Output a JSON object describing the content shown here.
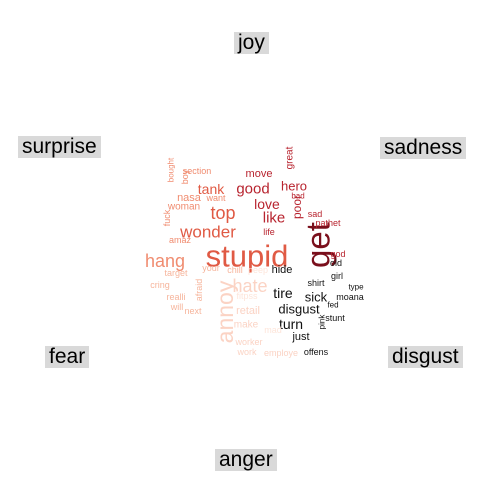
{
  "chart_data": {
    "type": "wordcloud",
    "categories": [
      "joy",
      "surprise",
      "sadness",
      "fear",
      "disgust",
      "anger"
    ],
    "colors": {
      "dark_red": "#7a0f1c",
      "red": "#b8242f",
      "orange_red": "#e05a44",
      "salmon": "#f08c70",
      "peach": "#f6b59c",
      "light_peach": "#fbd3c4",
      "pale": "#fde5da",
      "black": "#111111"
    },
    "words": [
      {
        "text": "stupid",
        "color": "orange_red"
      },
      {
        "text": "get",
        "color": "dark_red"
      },
      {
        "text": "annoy",
        "color": "light_peach"
      },
      {
        "text": "hang",
        "color": "salmon"
      },
      {
        "text": "wonder",
        "color": "orange_red"
      },
      {
        "text": "top",
        "color": "orange_red"
      },
      {
        "text": "hate",
        "color": "light_peach"
      },
      {
        "text": "like",
        "color": "red"
      },
      {
        "text": "love",
        "color": "red"
      },
      {
        "text": "good",
        "color": "red"
      },
      {
        "text": "tank",
        "color": "orange_red"
      },
      {
        "text": "hero",
        "color": "red"
      },
      {
        "text": "tire",
        "color": "black"
      },
      {
        "text": "turn",
        "color": "black"
      },
      {
        "text": "sick",
        "color": "black"
      },
      {
        "text": "disgust",
        "color": "black"
      },
      {
        "text": "poor",
        "color": "red"
      },
      {
        "text": "move",
        "color": "red"
      },
      {
        "text": "nasa",
        "color": "salmon"
      },
      {
        "text": "woman",
        "color": "salmon"
      },
      {
        "text": "section",
        "color": "salmon"
      },
      {
        "text": "great",
        "color": "red"
      },
      {
        "text": "bought",
        "color": "salmon"
      },
      {
        "text": "boy",
        "color": "salmon"
      },
      {
        "text": "want",
        "color": "salmon"
      },
      {
        "text": "fuck",
        "color": "salmon"
      },
      {
        "text": "amaz",
        "color": "salmon"
      },
      {
        "text": "bad",
        "color": "red"
      },
      {
        "text": "sad",
        "color": "red"
      },
      {
        "text": "pathet",
        "color": "red"
      },
      {
        "text": "life",
        "color": "red"
      },
      {
        "text": "god",
        "color": "red"
      },
      {
        "text": "old",
        "color": "black"
      },
      {
        "text": "girl",
        "color": "black"
      },
      {
        "text": "type",
        "color": "black"
      },
      {
        "text": "moana",
        "color": "black"
      },
      {
        "text": "fed",
        "color": "black"
      },
      {
        "text": "shirt",
        "color": "black"
      },
      {
        "text": "stunt",
        "color": "black"
      },
      {
        "text": "pink",
        "color": "black"
      },
      {
        "text": "just",
        "color": "black"
      },
      {
        "text": "offens",
        "color": "black"
      },
      {
        "text": "hide",
        "color": "black"
      },
      {
        "text": "chill",
        "color": "peach"
      },
      {
        "text": "peep",
        "color": "pale"
      },
      {
        "text": "your",
        "color": "peach"
      },
      {
        "text": "target",
        "color": "peach"
      },
      {
        "text": "cring",
        "color": "peach"
      },
      {
        "text": "realli",
        "color": "peach"
      },
      {
        "text": "afraid",
        "color": "peach"
      },
      {
        "text": "will",
        "color": "peach"
      },
      {
        "text": "next",
        "color": "peach"
      },
      {
        "text": "fitpss",
        "color": "pale"
      },
      {
        "text": "retail",
        "color": "light_peach"
      },
      {
        "text": "make",
        "color": "light_peach"
      },
      {
        "text": "mad",
        "color": "pale"
      },
      {
        "text": "worker",
        "color": "light_peach"
      },
      {
        "text": "work",
        "color": "light_peach"
      },
      {
        "text": "employe",
        "color": "light_peach"
      }
    ]
  }
}
